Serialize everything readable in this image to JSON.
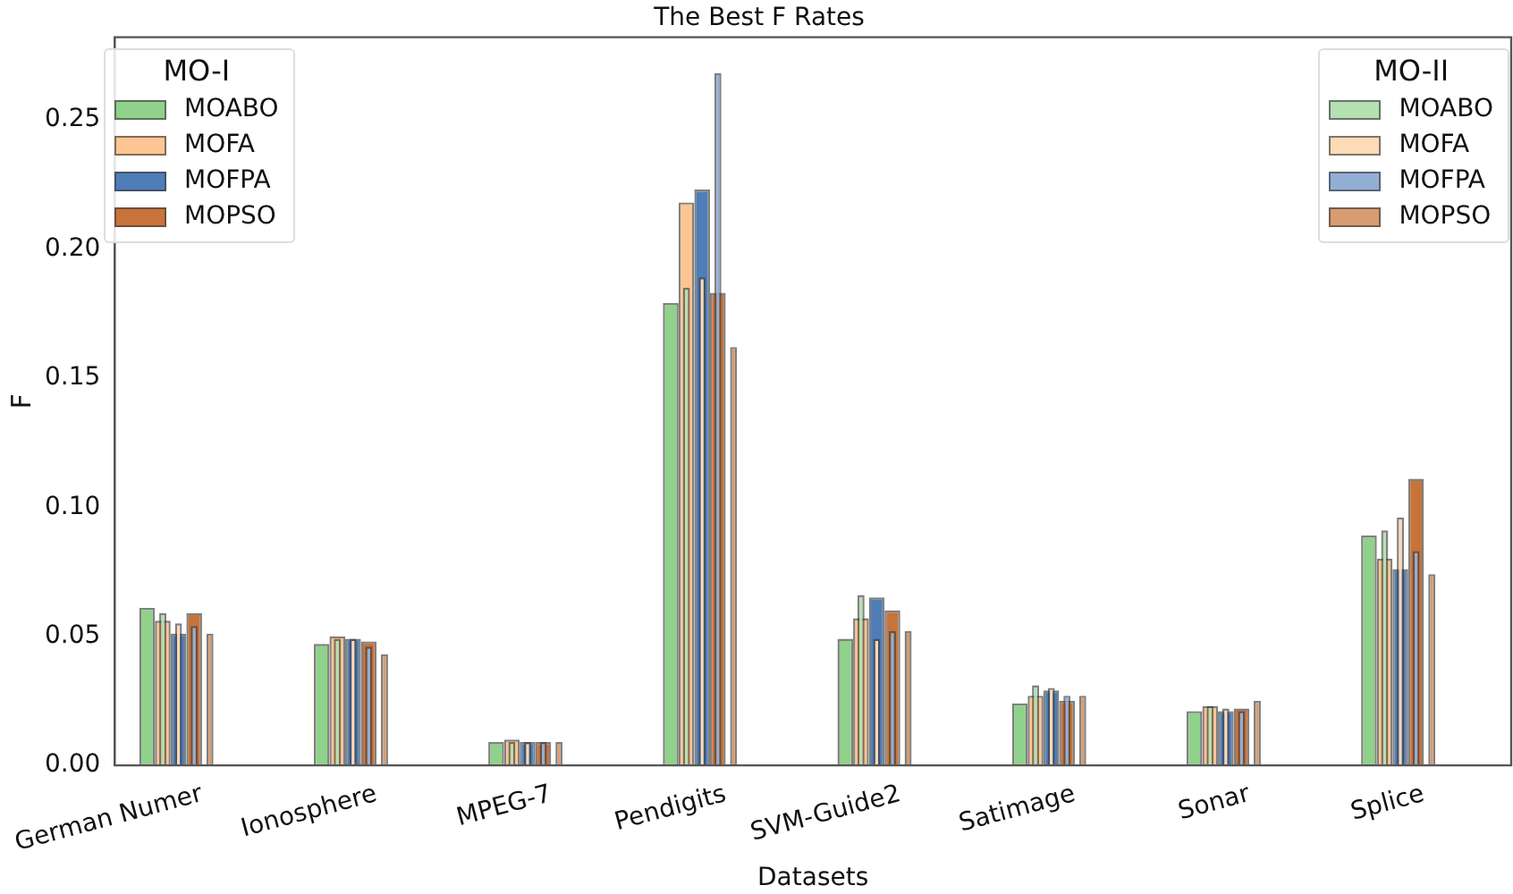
{
  "chart_data": {
    "type": "bar",
    "title": "The Best F Rates",
    "xlabel": "Datasets",
    "ylabel": "F",
    "categories": [
      "German Numer",
      "Ionosphere",
      "MPEG-7",
      "Pendigits",
      "SVM-Guide2",
      "Satimage",
      "Sonar",
      "Splice"
    ],
    "series": [
      {
        "name": "MOABO",
        "color": "#90d18b",
        "values": [
          0.061,
          0.047,
          0.009,
          0.179,
          0.049,
          0.024,
          0.021,
          0.089
        ]
      },
      {
        "name": "MOFA",
        "color": "#fdc593",
        "values": [
          0.056,
          0.05,
          0.01,
          0.218,
          0.057,
          0.027,
          0.023,
          0.08
        ]
      },
      {
        "name": "MOFPA",
        "color": "#4f7db8",
        "values": [
          0.051,
          0.049,
          0.009,
          0.223,
          0.065,
          0.029,
          0.021,
          0.076
        ]
      },
      {
        "name": "MOPSO",
        "color": "#c8733a",
        "values": [
          0.059,
          0.048,
          0.009,
          0.183,
          0.06,
          0.025,
          0.022,
          0.111
        ]
      },
      {
        "name": "MOABO",
        "color": "#b5e0b2",
        "values": [
          0.059,
          0.049,
          0.009,
          0.185,
          0.066,
          0.031,
          0.023,
          0.091
        ]
      },
      {
        "name": "MOFA",
        "color": "#fddab8",
        "values": [
          0.055,
          0.049,
          0.009,
          0.189,
          0.049,
          0.03,
          0.022,
          0.096
        ]
      },
      {
        "name": "MOFPA",
        "color": "#93aed5",
        "values": [
          0.054,
          0.046,
          0.009,
          0.268,
          0.052,
          0.027,
          0.021,
          0.083
        ]
      },
      {
        "name": "MOPSO",
        "color": "#d89c70",
        "values": [
          0.051,
          0.043,
          0.009,
          0.162,
          0.052,
          0.027,
          0.025,
          0.074
        ]
      }
    ],
    "legend_title": [
      "MO-I",
      "MO-II"
    ],
    "legend": [
      "top left",
      "top right"
    ],
    "ylim": [
      0,
      0.282
    ],
    "yticks": [
      {
        "value": 0,
        "label": "0.00"
      },
      {
        "value": 0.05,
        "label": "0.05"
      },
      {
        "value": 0.1,
        "label": "0.10"
      },
      {
        "value": 0.15,
        "label": "0.15"
      },
      {
        "value": 0.2,
        "label": "0.20"
      },
      {
        "value": 0.25,
        "label": "0.25"
      }
    ],
    "grid": false
  }
}
